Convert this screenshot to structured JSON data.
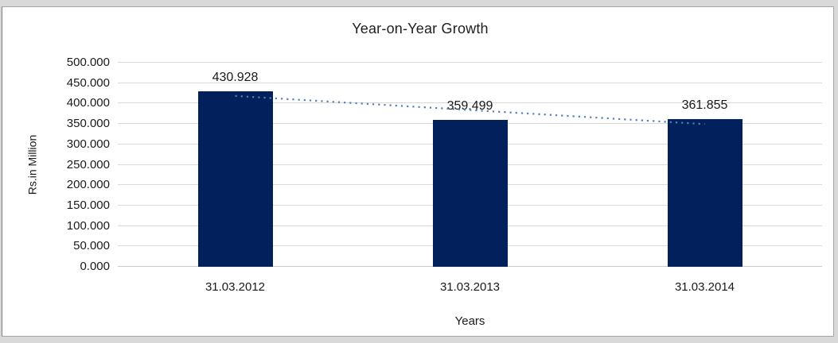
{
  "frame": {
    "outer_background": "#D9D9D9",
    "chart_background": "#FFFFFF",
    "chart_border_color": "#A6A6A6"
  },
  "chart_data": {
    "type": "bar",
    "title": "Year-on-Year Growth",
    "xlabel": "Years",
    "ylabel": "Rs.in Million",
    "categories": [
      "31.03.2012",
      "31.03.2013",
      "31.03.2014"
    ],
    "values": [
      430.928,
      359.499,
      361.855
    ],
    "data_labels": [
      "430.928",
      "359.499",
      "361.855"
    ],
    "ylim": [
      0,
      500
    ],
    "ytick_step": 50,
    "y_tick_labels": [
      "0.000",
      "50.000",
      "100.000",
      "150.000",
      "200.000",
      "250.000",
      "300.000",
      "350.000",
      "400.000",
      "450.000",
      "500.000"
    ],
    "grid": true,
    "legend": false,
    "bar_color": "#02215C",
    "gridline_color": "#D9D9D9",
    "axis_line_color": "#C9C9C9",
    "text_color": "#1A1A1A",
    "trendline": {
      "type": "linear",
      "style": "dotted",
      "color": "#4F81BD"
    }
  }
}
